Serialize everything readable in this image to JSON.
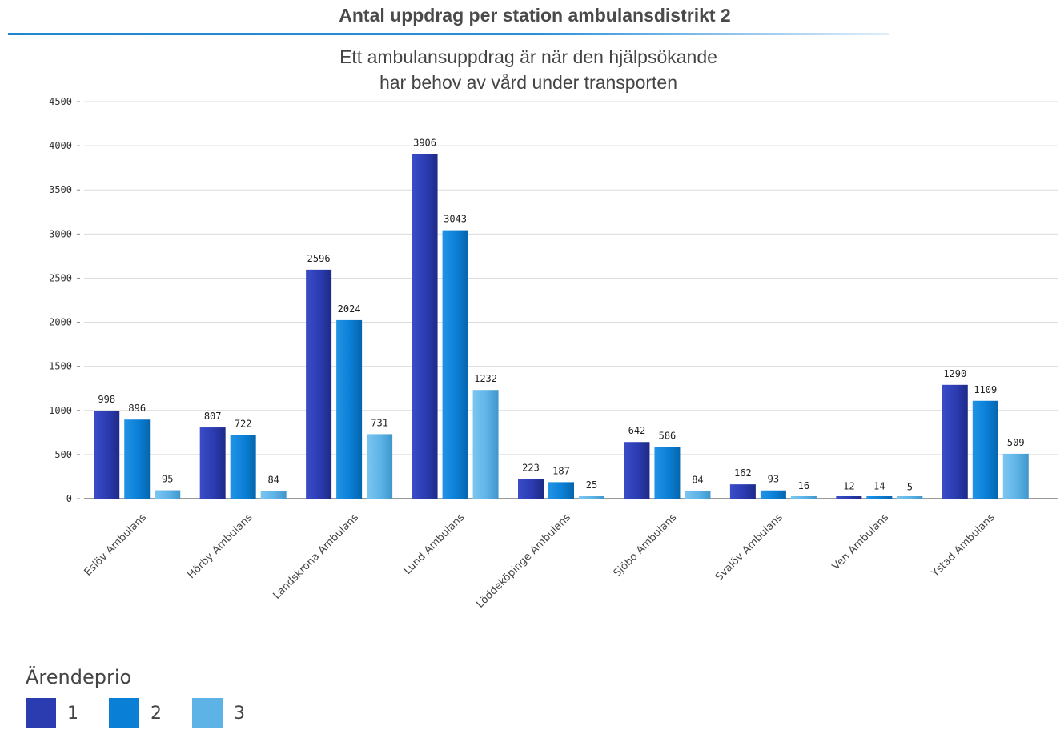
{
  "chart_data": {
    "type": "bar",
    "title": "Antal uppdrag per station ambulansdistrikt 2",
    "subtitle_lines": [
      "Ett ambulansuppdrag är när den hjälpsökande",
      "har behov av vård under transporten"
    ],
    "categories": [
      "Eslöv Ambulans",
      "Hörby Ambulans",
      "Landskrona Ambulans",
      "Lund Ambulans",
      "Löddeköpinge Ambulans",
      "Sjöbo Ambulans",
      "Svalöv Ambulans",
      "Ven Ambulans",
      "Ystad Ambulans"
    ],
    "series": [
      {
        "name": "1",
        "color": "#2b3bb0",
        "values": [
          998,
          807,
          2596,
          3906,
          223,
          642,
          162,
          12,
          1290
        ]
      },
      {
        "name": "2",
        "color": "#0a7fd6",
        "values": [
          896,
          722,
          2024,
          3043,
          187,
          586,
          93,
          14,
          1109
        ]
      },
      {
        "name": "3",
        "color": "#5db3e6",
        "values": [
          95,
          84,
          731,
          1232,
          25,
          84,
          16,
          5,
          509
        ]
      }
    ],
    "ylim": [
      0,
      4500
    ],
    "yticks": [
      0,
      500,
      1000,
      1500,
      2000,
      2500,
      3000,
      3500,
      4000,
      4500
    ],
    "grid": true,
    "legend_title": "Ärendeprio",
    "legend_position": "bottom-left"
  }
}
